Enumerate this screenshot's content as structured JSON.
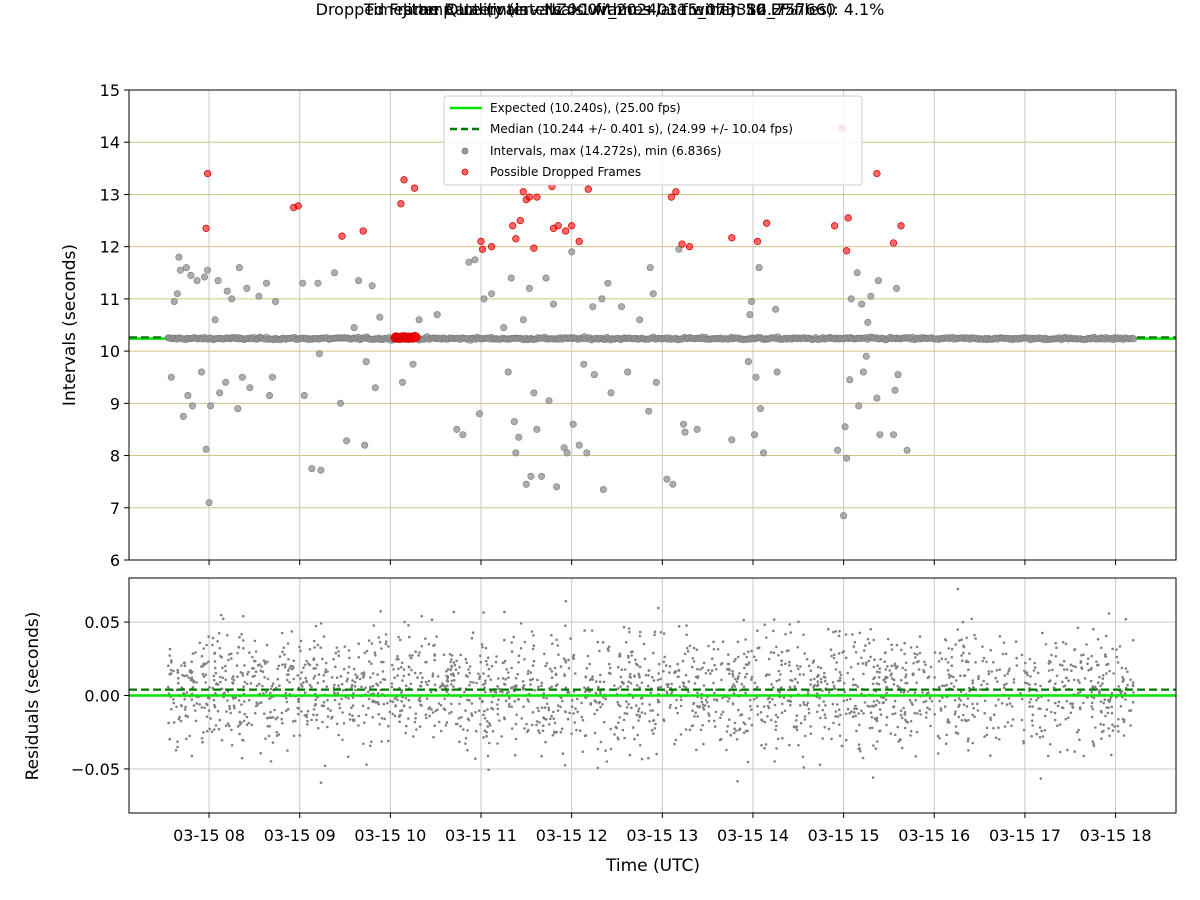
{
  "title": "Timestamp Intervals - NZ000V_20240315_073312_757660",
  "subtitle_1": "Jitter Quality (intervals within +/-1 frame): 86.2%",
  "subtitle_2": "Dropped Frame Rate (intervals >1 frames late within 50 FF files): 4.1%",
  "colors": {
    "expected": "#00e600",
    "median": "#007a00",
    "intervals": "#999999",
    "dropped": "#ff0000",
    "residuals": "#808080",
    "hgrid_top": "#d4c38a",
    "grid": "#c8c8c8"
  },
  "chart_data": [
    {
      "type": "scatter",
      "panel": "intervals",
      "ylabel": "Intervals (seconds)",
      "ylim": [
        6,
        15
      ],
      "yticks": [
        6,
        7,
        8,
        9,
        10,
        11,
        12,
        13,
        14,
        15
      ],
      "xlim": [
        "07:07",
        "18:40"
      ],
      "expected": 10.24,
      "median": 10.244,
      "legend_position": "top-center",
      "legend": [
        "Expected (10.240s), (25.00 fps)",
        "Median (10.244 +/- 0.401 s), (24.99 +/- 10.04 fps)",
        "Intervals, max (14.272s), min (6.836s)",
        "Possible Dropped Frames"
      ],
      "baseline_interval": 10.24,
      "data_time_range": [
        "07:33",
        "18:12"
      ],
      "outliers": [
        {
          "t": "07:35",
          "y": 9.5
        },
        {
          "t": "07:37",
          "y": 10.95
        },
        {
          "t": "07:39",
          "y": 11.1
        },
        {
          "t": "07:40",
          "y": 11.8
        },
        {
          "t": "07:41",
          "y": 11.55
        },
        {
          "t": "07:43",
          "y": 8.75
        },
        {
          "t": "07:45",
          "y": 11.6
        },
        {
          "t": "07:46",
          "y": 9.15
        },
        {
          "t": "07:48",
          "y": 11.45
        },
        {
          "t": "07:49",
          "y": 8.95
        },
        {
          "t": "07:52",
          "y": 11.35
        },
        {
          "t": "07:55",
          "y": 9.6
        },
        {
          "t": "07:57",
          "y": 11.42
        },
        {
          "t": "07:58",
          "y": 8.12
        },
        {
          "t": "07:59",
          "y": 11.55
        },
        {
          "t": "08:00",
          "y": 7.1
        },
        {
          "t": "08:01",
          "y": 8.95
        },
        {
          "t": "08:04",
          "y": 10.6
        },
        {
          "t": "08:06",
          "y": 11.35
        },
        {
          "t": "08:07",
          "y": 9.2
        },
        {
          "t": "08:11",
          "y": 9.4
        },
        {
          "t": "08:12",
          "y": 11.15
        },
        {
          "t": "08:15",
          "y": 11.0
        },
        {
          "t": "08:19",
          "y": 8.9
        },
        {
          "t": "08:20",
          "y": 11.6
        },
        {
          "t": "08:22",
          "y": 9.5
        },
        {
          "t": "08:25",
          "y": 11.2
        },
        {
          "t": "08:27",
          "y": 9.3
        },
        {
          "t": "08:33",
          "y": 11.05
        },
        {
          "t": "08:38",
          "y": 11.3
        },
        {
          "t": "08:40",
          "y": 9.15
        },
        {
          "t": "08:42",
          "y": 9.5
        },
        {
          "t": "08:44",
          "y": 10.95
        },
        {
          "t": "09:02",
          "y": 11.3
        },
        {
          "t": "09:03",
          "y": 9.15
        },
        {
          "t": "09:08",
          "y": 7.75
        },
        {
          "t": "09:12",
          "y": 11.3
        },
        {
          "t": "09:13",
          "y": 9.95
        },
        {
          "t": "09:14",
          "y": 7.72
        },
        {
          "t": "09:23",
          "y": 11.5
        },
        {
          "t": "09:27",
          "y": 9.0
        },
        {
          "t": "09:31",
          "y": 8.28
        },
        {
          "t": "09:36",
          "y": 10.45
        },
        {
          "t": "09:39",
          "y": 11.35
        },
        {
          "t": "09:43",
          "y": 8.2
        },
        {
          "t": "09:44",
          "y": 9.8
        },
        {
          "t": "09:48",
          "y": 11.25
        },
        {
          "t": "09:50",
          "y": 9.3
        },
        {
          "t": "09:53",
          "y": 10.65
        },
        {
          "t": "10:08",
          "y": 9.4
        },
        {
          "t": "10:15",
          "y": 9.75
        },
        {
          "t": "10:19",
          "y": 10.6
        },
        {
          "t": "10:31",
          "y": 10.7
        },
        {
          "t": "10:44",
          "y": 8.5
        },
        {
          "t": "10:48",
          "y": 8.4
        },
        {
          "t": "10:52",
          "y": 11.7
        },
        {
          "t": "10:56",
          "y": 11.75
        },
        {
          "t": "10:59",
          "y": 8.8
        },
        {
          "t": "11:02",
          "y": 11.0
        },
        {
          "t": "11:07",
          "y": 11.1
        },
        {
          "t": "11:15",
          "y": 10.45
        },
        {
          "t": "11:18",
          "y": 9.6
        },
        {
          "t": "11:20",
          "y": 11.4
        },
        {
          "t": "11:22",
          "y": 8.65
        },
        {
          "t": "11:23",
          "y": 8.05
        },
        {
          "t": "11:25",
          "y": 8.35
        },
        {
          "t": "11:28",
          "y": 10.6
        },
        {
          "t": "11:30",
          "y": 7.45
        },
        {
          "t": "11:32",
          "y": 11.2
        },
        {
          "t": "11:33",
          "y": 7.6
        },
        {
          "t": "11:35",
          "y": 9.2
        },
        {
          "t": "11:37",
          "y": 8.5
        },
        {
          "t": "11:40",
          "y": 7.6
        },
        {
          "t": "11:43",
          "y": 11.4
        },
        {
          "t": "11:45",
          "y": 9.05
        },
        {
          "t": "11:48",
          "y": 10.9
        },
        {
          "t": "11:50",
          "y": 7.4
        },
        {
          "t": "11:55",
          "y": 8.15
        },
        {
          "t": "11:57",
          "y": 8.05
        },
        {
          "t": "12:00",
          "y": 11.9
        },
        {
          "t": "12:01",
          "y": 8.6
        },
        {
          "t": "12:05",
          "y": 8.2
        },
        {
          "t": "12:08",
          "y": 9.75
        },
        {
          "t": "12:10",
          "y": 8.05
        },
        {
          "t": "12:14",
          "y": 10.85
        },
        {
          "t": "12:15",
          "y": 9.55
        },
        {
          "t": "12:20",
          "y": 11.0
        },
        {
          "t": "12:21",
          "y": 7.35
        },
        {
          "t": "12:24",
          "y": 11.3
        },
        {
          "t": "12:26",
          "y": 9.2
        },
        {
          "t": "12:33",
          "y": 10.85
        },
        {
          "t": "12:37",
          "y": 9.6
        },
        {
          "t": "12:45",
          "y": 10.6
        },
        {
          "t": "12:51",
          "y": 8.85
        },
        {
          "t": "12:52",
          "y": 11.6
        },
        {
          "t": "12:54",
          "y": 11.1
        },
        {
          "t": "12:56",
          "y": 9.4
        },
        {
          "t": "13:03",
          "y": 7.55
        },
        {
          "t": "13:07",
          "y": 7.45
        },
        {
          "t": "13:11",
          "y": 11.95
        },
        {
          "t": "13:14",
          "y": 8.6
        },
        {
          "t": "13:15",
          "y": 8.45
        },
        {
          "t": "13:23",
          "y": 8.5
        },
        {
          "t": "13:46",
          "y": 8.3
        },
        {
          "t": "13:57",
          "y": 9.8
        },
        {
          "t": "13:58",
          "y": 10.7
        },
        {
          "t": "13:59",
          "y": 10.95
        },
        {
          "t": "14:01",
          "y": 8.4
        },
        {
          "t": "14:02",
          "y": 9.5
        },
        {
          "t": "14:04",
          "y": 11.6
        },
        {
          "t": "14:05",
          "y": 8.9
        },
        {
          "t": "14:07",
          "y": 8.05
        },
        {
          "t": "14:15",
          "y": 10.8
        },
        {
          "t": "14:16",
          "y": 9.6
        },
        {
          "t": "14:56",
          "y": 8.1
        },
        {
          "t": "15:00",
          "y": 6.85
        },
        {
          "t": "15:01",
          "y": 8.55
        },
        {
          "t": "15:02",
          "y": 7.95
        },
        {
          "t": "15:04",
          "y": 9.45
        },
        {
          "t": "15:05",
          "y": 11.0
        },
        {
          "t": "15:09",
          "y": 11.5
        },
        {
          "t": "15:10",
          "y": 8.95
        },
        {
          "t": "15:12",
          "y": 10.9
        },
        {
          "t": "15:13",
          "y": 9.6
        },
        {
          "t": "15:15",
          "y": 9.9
        },
        {
          "t": "15:16",
          "y": 10.55
        },
        {
          "t": "15:18",
          "y": 11.05
        },
        {
          "t": "15:22",
          "y": 9.1
        },
        {
          "t": "15:23",
          "y": 11.35
        },
        {
          "t": "15:24",
          "y": 8.4
        },
        {
          "t": "15:33",
          "y": 8.4
        },
        {
          "t": "15:34",
          "y": 9.25
        },
        {
          "t": "15:35",
          "y": 11.2
        },
        {
          "t": "15:36",
          "y": 9.55
        },
        {
          "t": "15:42",
          "y": 8.1
        }
      ],
      "dropped_frames": [
        {
          "t": "07:58",
          "y": 12.35
        },
        {
          "t": "07:59",
          "y": 13.4
        },
        {
          "t": "08:56",
          "y": 12.75
        },
        {
          "t": "08:59",
          "y": 12.78
        },
        {
          "t": "09:28",
          "y": 12.2
        },
        {
          "t": "09:42",
          "y": 12.3
        },
        {
          "t": "10:07",
          "y": 12.82
        },
        {
          "t": "10:09",
          "y": 13.28
        },
        {
          "t": "10:16",
          "y": 13.12
        },
        {
          "t": "11:00",
          "y": 12.1
        },
        {
          "t": "11:01",
          "y": 11.95
        },
        {
          "t": "11:07",
          "y": 12.0
        },
        {
          "t": "11:21",
          "y": 12.4
        },
        {
          "t": "11:23",
          "y": 12.15
        },
        {
          "t": "11:26",
          "y": 12.5
        },
        {
          "t": "11:28",
          "y": 13.05
        },
        {
          "t": "11:30",
          "y": 12.9
        },
        {
          "t": "11:32",
          "y": 12.95
        },
        {
          "t": "11:35",
          "y": 11.97
        },
        {
          "t": "11:37",
          "y": 12.95
        },
        {
          "t": "11:47",
          "y": 13.15
        },
        {
          "t": "11:48",
          "y": 12.35
        },
        {
          "t": "11:51",
          "y": 12.4
        },
        {
          "t": "11:56",
          "y": 12.3
        },
        {
          "t": "12:00",
          "y": 12.4
        },
        {
          "t": "12:05",
          "y": 12.1
        },
        {
          "t": "12:11",
          "y": 13.1
        },
        {
          "t": "13:06",
          "y": 12.95
        },
        {
          "t": "13:09",
          "y": 13.05
        },
        {
          "t": "13:13",
          "y": 12.05
        },
        {
          "t": "13:18",
          "y": 12.0
        },
        {
          "t": "13:46",
          "y": 12.17
        },
        {
          "t": "14:03",
          "y": 12.1
        },
        {
          "t": "14:09",
          "y": 12.45
        },
        {
          "t": "14:54",
          "y": 12.4
        },
        {
          "t": "14:59",
          "y": 14.27
        },
        {
          "t": "15:02",
          "y": 11.92
        },
        {
          "t": "15:03",
          "y": 12.55
        },
        {
          "t": "15:22",
          "y": 13.4
        },
        {
          "t": "15:33",
          "y": 12.07
        },
        {
          "t": "15:38",
          "y": 12.4
        }
      ],
      "dropped_cluster": {
        "t_start": "10:03",
        "t_end": "10:17",
        "y": 10.26
      }
    },
    {
      "type": "scatter",
      "panel": "residuals",
      "xlabel": "Time (UTC)",
      "ylabel": "Residuals (seconds)",
      "ylim": [
        -0.08,
        0.08
      ],
      "yticks": [
        0.05,
        0.0,
        -0.05
      ],
      "ytick_labels": [
        "0.05",
        "0.00",
        "−0.05"
      ],
      "expected": 0.0,
      "median_offset": 0.004,
      "residual_spread_sd": 0.02,
      "residual_range": [
        -0.06,
        0.075
      ],
      "data_time_range": [
        "07:33",
        "18:12"
      ],
      "xticks": [
        "08:00",
        "09:00",
        "10:00",
        "11:00",
        "12:00",
        "13:00",
        "14:00",
        "15:00",
        "16:00",
        "17:00",
        "18:00"
      ],
      "xtick_labels": [
        "03-15 08",
        "03-15 09",
        "03-15 10",
        "03-15 11",
        "03-15 12",
        "03-15 13",
        "03-15 14",
        "03-15 15",
        "03-15 16",
        "03-15 17",
        "03-15 18"
      ]
    }
  ]
}
